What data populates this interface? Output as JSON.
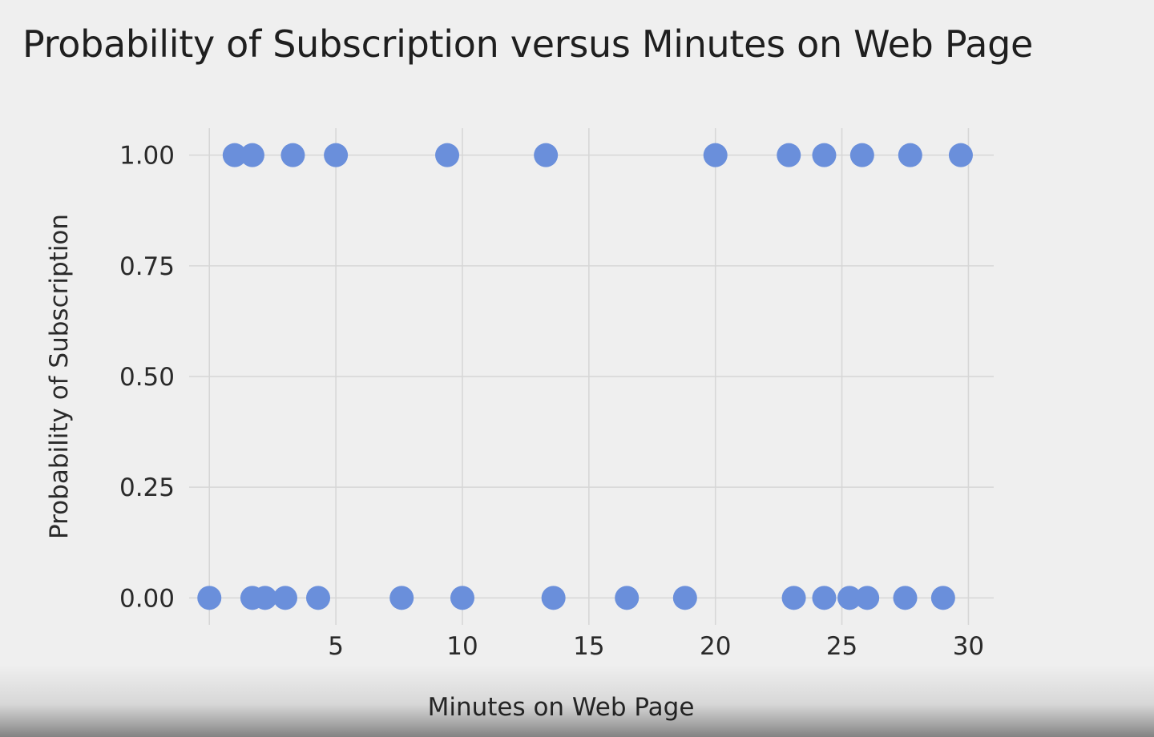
{
  "chart_data": {
    "type": "scatter",
    "title": "Probability of Subscription versus Minutes on Web Page",
    "xlabel": "Minutes on Web Page",
    "ylabel": "Probability of Subscription",
    "xlim": [
      -0.8,
      31.0
    ],
    "ylim": [
      -0.07,
      1.07
    ],
    "xticks": [
      5,
      10,
      15,
      20,
      25,
      30
    ],
    "xtick_labels": [
      "5",
      "10",
      "15",
      "20",
      "25",
      "30"
    ],
    "yticks": [
      0.0,
      0.25,
      0.5,
      0.75,
      1.0
    ],
    "ytick_labels": [
      "0.00",
      "0.25",
      "0.50",
      "0.75",
      "1.00"
    ],
    "grid": true,
    "point_color": "#6a8fdb",
    "points": [
      {
        "x": 1.0,
        "y": 1
      },
      {
        "x": 1.7,
        "y": 1
      },
      {
        "x": 3.3,
        "y": 1
      },
      {
        "x": 5.0,
        "y": 1
      },
      {
        "x": 9.4,
        "y": 1
      },
      {
        "x": 13.3,
        "y": 1
      },
      {
        "x": 20.0,
        "y": 1
      },
      {
        "x": 22.9,
        "y": 1
      },
      {
        "x": 24.3,
        "y": 1
      },
      {
        "x": 25.8,
        "y": 1
      },
      {
        "x": 27.7,
        "y": 1
      },
      {
        "x": 29.7,
        "y": 1
      },
      {
        "x": 0.0,
        "y": 0
      },
      {
        "x": 1.7,
        "y": 0
      },
      {
        "x": 2.2,
        "y": 0
      },
      {
        "x": 3.0,
        "y": 0
      },
      {
        "x": 4.3,
        "y": 0
      },
      {
        "x": 7.6,
        "y": 0
      },
      {
        "x": 10.0,
        "y": 0
      },
      {
        "x": 13.6,
        "y": 0
      },
      {
        "x": 16.5,
        "y": 0
      },
      {
        "x": 18.8,
        "y": 0
      },
      {
        "x": 23.1,
        "y": 0
      },
      {
        "x": 24.3,
        "y": 0
      },
      {
        "x": 25.3,
        "y": 0
      },
      {
        "x": 26.0,
        "y": 0
      },
      {
        "x": 27.5,
        "y": 0
      },
      {
        "x": 29.0,
        "y": 0
      }
    ]
  }
}
